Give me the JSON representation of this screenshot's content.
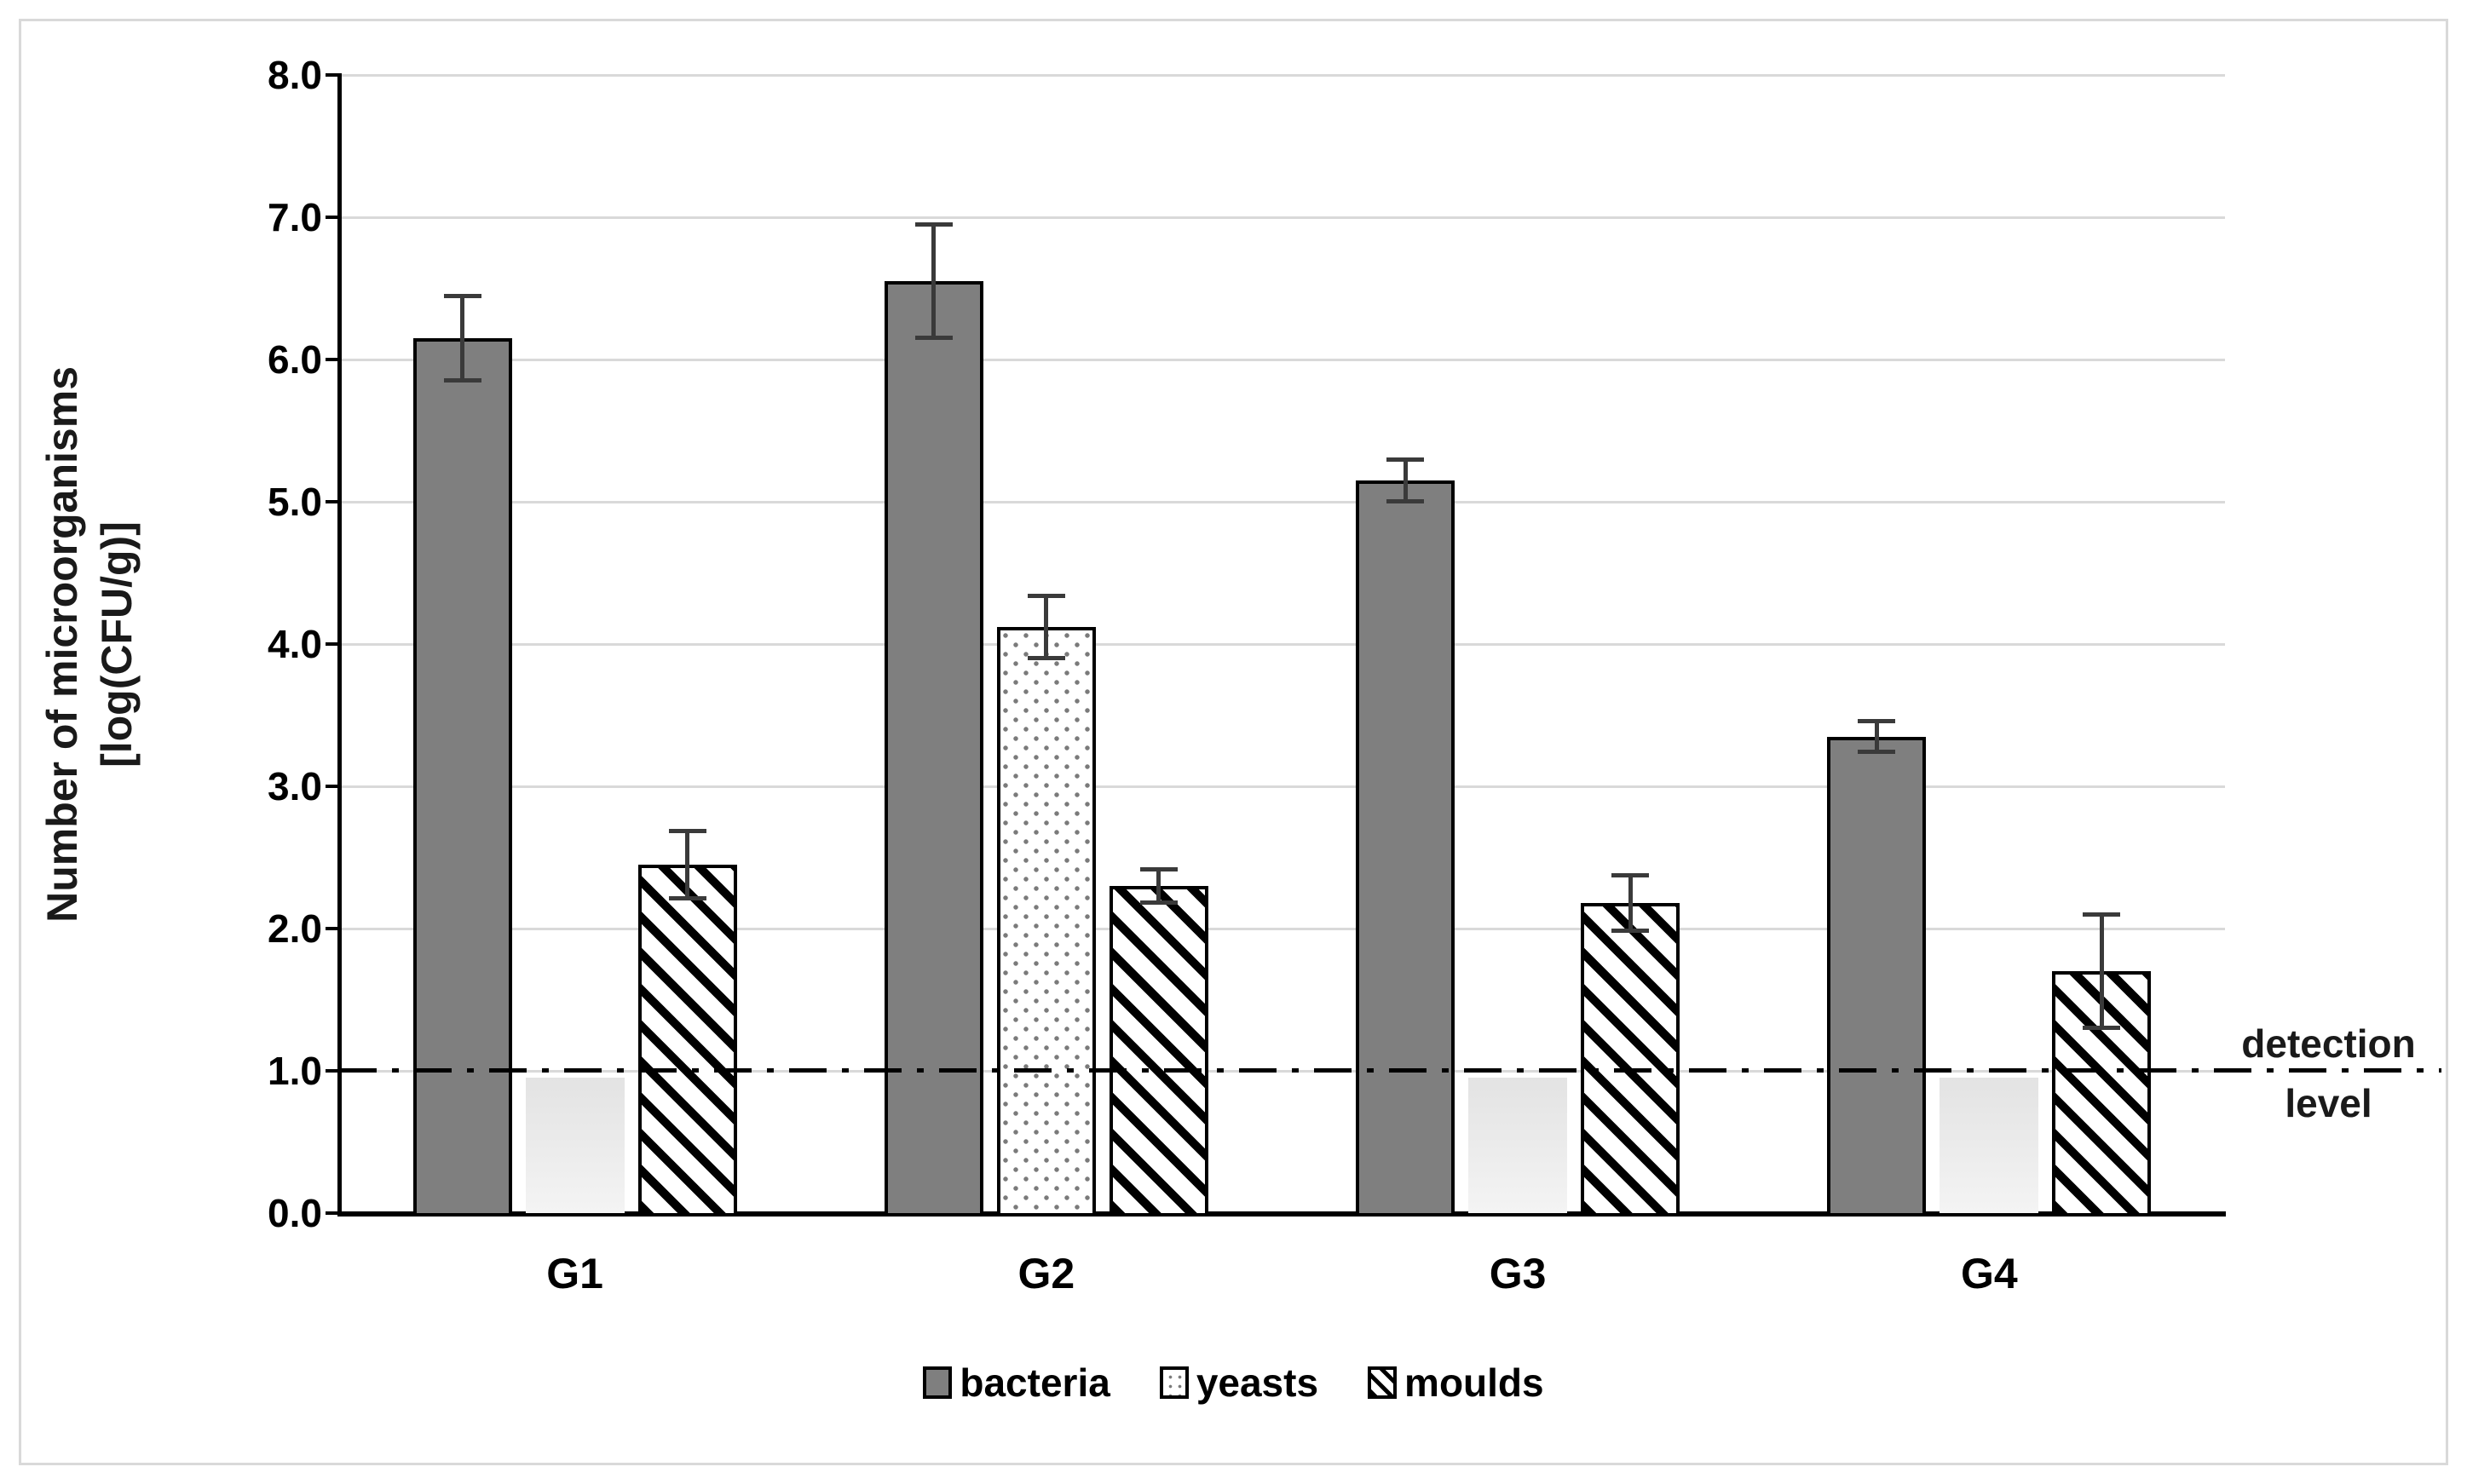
{
  "chart_data": {
    "type": "bar",
    "title": "",
    "ylabel_line1": "Number of microorganisms",
    "ylabel_line2": "[log(CFU/g)]",
    "categories": [
      "G1",
      "G2",
      "G3",
      "G4"
    ],
    "series": [
      {
        "name": "bacteria",
        "style": "solid-gray",
        "values": [
          6.15,
          6.55,
          5.15,
          3.35
        ],
        "errors": [
          0.3,
          0.4,
          0.15,
          0.11
        ],
        "below_detection": [
          false,
          false,
          false,
          false
        ]
      },
      {
        "name": "yeasts",
        "style": "dotted",
        "values": [
          0.95,
          4.12,
          0.95,
          0.95
        ],
        "errors": [
          null,
          0.22,
          null,
          null
        ],
        "below_detection": [
          true,
          false,
          true,
          true
        ]
      },
      {
        "name": "moulds",
        "style": "hatched",
        "values": [
          2.45,
          2.3,
          2.18,
          1.7
        ],
        "errors": [
          0.24,
          0.12,
          0.2,
          0.4
        ],
        "below_detection": [
          false,
          false,
          false,
          false
        ]
      }
    ],
    "y_ticks": [
      {
        "label": "8.0",
        "value": 8
      },
      {
        "label": "7.0",
        "value": 7
      },
      {
        "label": "6.0",
        "value": 6
      },
      {
        "label": "5.0",
        "value": 5
      },
      {
        "label": "4.0",
        "value": 4
      },
      {
        "label": "3.0",
        "value": 3
      },
      {
        "label": "2.0",
        "value": 2
      },
      {
        "label": "1.0",
        "value": 1
      },
      {
        "label": "0.0",
        "value": 0
      }
    ],
    "ylim": [
      0,
      8
    ],
    "grid": true,
    "legend_position": "bottom",
    "detection_level": 1.0,
    "annotation": {
      "line1": "detection",
      "line2": "level"
    },
    "legend": [
      "bacteria",
      "yeasts",
      "moulds"
    ],
    "colors": {
      "bacteria_fill": "#7f7f7f",
      "gridline": "#d9d9d9",
      "error_bar": "#3a3a3a",
      "faded_bar_top": "#e3e3e3",
      "faded_bar_bottom": "#f4f4f4",
      "axis": "#000000",
      "figure_border": "#d9d9d9"
    }
  }
}
